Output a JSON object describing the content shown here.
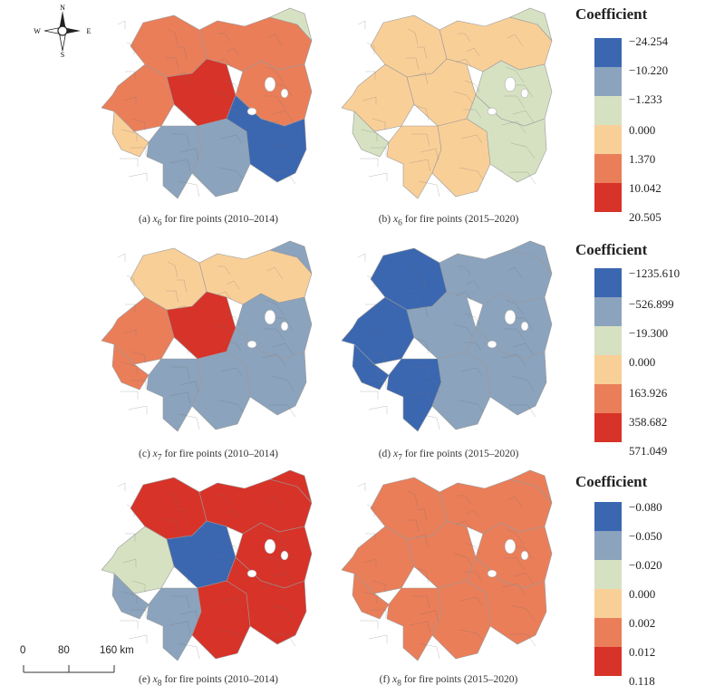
{
  "compass": {
    "n": "N",
    "s": "S",
    "e": "E",
    "w": "W"
  },
  "scalebar": {
    "ticks": [
      "0",
      "80",
      "160 km"
    ]
  },
  "legends": [
    {
      "title": "Coefficient",
      "labels": [
        "−24.254",
        "−10.220",
        "−1.233",
        "0.000",
        "1.370",
        "10.042",
        "20.505"
      ]
    },
    {
      "title": "Coefficient",
      "labels": [
        "−1235.610",
        "−526.899",
        "−19.300",
        "0.000",
        "163.926",
        "358.682",
        "571.049"
      ]
    },
    {
      "title": "Coefficient",
      "labels": [
        "−0.080",
        "−0.050",
        "−0.020",
        "0.000",
        "0.002",
        "0.012",
        "0.118"
      ]
    }
  ],
  "colors": [
    "#3b67b1",
    "#8ba3bd",
    "#d6e1c2",
    "#f9cf98",
    "#ea7e59",
    "#d73329",
    "#ffffff"
  ],
  "maps": [
    {
      "caption_pre": "(a) ",
      "var": "x",
      "sub": "6",
      "caption_post": " for fire points (2010–2014)",
      "regions": [
        "north:4",
        "nw:4",
        "west:4",
        "center:5",
        "east:4",
        "far-west:3",
        "sw:1",
        "south:1",
        "se:0",
        "ne:2"
      ]
    },
    {
      "caption_pre": "(b) ",
      "var": "x",
      "sub": "6",
      "caption_post": " for fire points (2015–2020)",
      "regions": [
        "north:3",
        "nw:3",
        "west:3",
        "center:3",
        "east:2",
        "far-west:2",
        "sw:3",
        "south:3",
        "se:2",
        "ne:2"
      ]
    },
    {
      "caption_pre": "(c) ",
      "var": "x",
      "sub": "7",
      "caption_post": " for fire points (2010–2014)",
      "regions": [
        "north:3",
        "nw:3",
        "west:4",
        "center:5",
        "east:1",
        "far-west:4",
        "sw:1",
        "south:1",
        "se:1",
        "ne:1"
      ]
    },
    {
      "caption_pre": "(d) ",
      "var": "x",
      "sub": "7",
      "caption_post": " for fire points (2015–2020)",
      "regions": [
        "north:1",
        "nw:0",
        "west:0",
        "center:1",
        "east:1",
        "far-west:0",
        "sw:0",
        "south:1",
        "se:1",
        "ne:1"
      ]
    },
    {
      "caption_pre": "(e) ",
      "var": "x",
      "sub": "8",
      "caption_post": " for fire points (2010–2014)",
      "regions": [
        "north:5",
        "nw:5",
        "west:2",
        "center:0",
        "east:5",
        "far-west:1",
        "sw:1",
        "south:5",
        "se:5",
        "ne:5"
      ]
    },
    {
      "caption_pre": "(f) ",
      "var": "x",
      "sub": "8",
      "caption_post": " for fire points (2015–2020)",
      "regions": [
        "north:4",
        "nw:4",
        "west:4",
        "center:4",
        "east:4",
        "far-west:4",
        "sw:4",
        "south:4",
        "se:4",
        "ne:4"
      ]
    }
  ]
}
